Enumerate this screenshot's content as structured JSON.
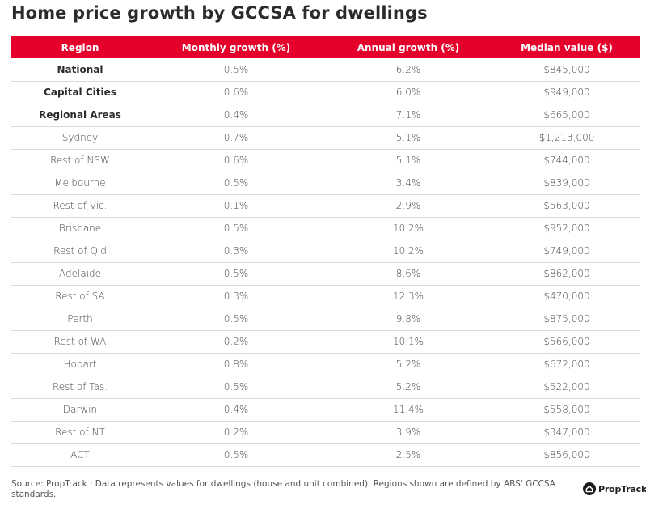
{
  "title": "Home price growth by GCCSA for dwellings",
  "colors": {
    "header_bg": "#e4002b",
    "header_text": "#ffffff",
    "row_divider": "#d9d9d9"
  },
  "table": {
    "columns": [
      "Region",
      "Monthly growth (%)",
      "Annual growth (%)",
      "Median value ($)"
    ],
    "rows": [
      {
        "region": "National",
        "monthly": "0.5%",
        "annual": "6.2%",
        "median": "$845,000",
        "bold": true
      },
      {
        "region": "Capital Cities",
        "monthly": "0.6%",
        "annual": "6.0%",
        "median": "$949,000",
        "bold": true
      },
      {
        "region": "Regional Areas",
        "monthly": "0.4%",
        "annual": "7.1%",
        "median": "$665,000",
        "bold": true
      },
      {
        "region": "Sydney",
        "monthly": "0.7%",
        "annual": "5.1%",
        "median": "$1,213,000",
        "bold": false
      },
      {
        "region": "Rest of NSW",
        "monthly": "0.6%",
        "annual": "5.1%",
        "median": "$744,000",
        "bold": false
      },
      {
        "region": "Melbourne",
        "monthly": "0.5%",
        "annual": "3.4%",
        "median": "$839,000",
        "bold": false
      },
      {
        "region": "Rest of Vic.",
        "monthly": "0.1%",
        "annual": "2.9%",
        "median": "$563,000",
        "bold": false
      },
      {
        "region": "Brisbane",
        "monthly": "0.5%",
        "annual": "10.2%",
        "median": "$952,000",
        "bold": false
      },
      {
        "region": "Rest of Qld",
        "monthly": "0.3%",
        "annual": "10.2%",
        "median": "$749,000",
        "bold": false
      },
      {
        "region": "Adelaide",
        "monthly": "0.5%",
        "annual": "8.6%",
        "median": "$862,000",
        "bold": false
      },
      {
        "region": "Rest of SA",
        "monthly": "0.3%",
        "annual": "12.3%",
        "median": "$470,000",
        "bold": false
      },
      {
        "region": "Perth",
        "monthly": "0.5%",
        "annual": "9.8%",
        "median": "$875,000",
        "bold": false
      },
      {
        "region": "Rest of WA",
        "monthly": "0.2%",
        "annual": "10.1%",
        "median": "$566,000",
        "bold": false
      },
      {
        "region": "Hobart",
        "monthly": "0.8%",
        "annual": "5.2%",
        "median": "$672,000",
        "bold": false
      },
      {
        "region": "Rest of Tas.",
        "monthly": "0.5%",
        "annual": "5.2%",
        "median": "$522,000",
        "bold": false
      },
      {
        "region": "Darwin",
        "monthly": "0.4%",
        "annual": "11.4%",
        "median": "$558,000",
        "bold": false
      },
      {
        "region": "Rest of NT",
        "monthly": "0.2%",
        "annual": "3.9%",
        "median": "$347,000",
        "bold": false
      },
      {
        "region": "ACT",
        "monthly": "0.5%",
        "annual": "2.5%",
        "median": "$856,000",
        "bold": false
      }
    ]
  },
  "footer": {
    "source_text": "Source: PropTrack · Data represents values for dwellings (house and unit combined). Regions shown are defined by ABS' GCCSA standards.",
    "logo_icon": "house-in-circle-icon",
    "logo_text": "PropTrack"
  }
}
